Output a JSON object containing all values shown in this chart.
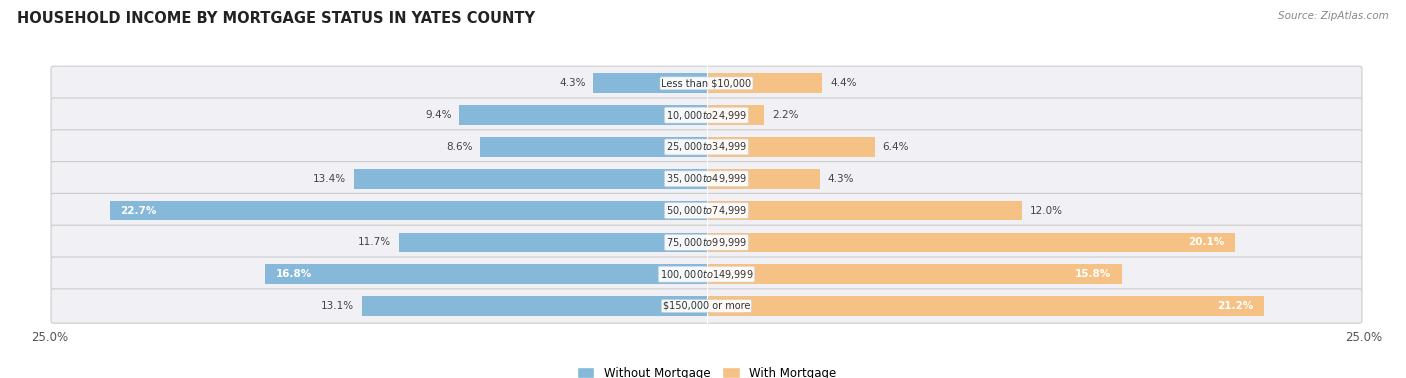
{
  "title": "HOUSEHOLD INCOME BY MORTGAGE STATUS IN YATES COUNTY",
  "source": "Source: ZipAtlas.com",
  "categories": [
    "Less than $10,000",
    "$10,000 to $24,999",
    "$25,000 to $34,999",
    "$35,000 to $49,999",
    "$50,000 to $74,999",
    "$75,000 to $99,999",
    "$100,000 to $149,999",
    "$150,000 or more"
  ],
  "without_mortgage": [
    4.3,
    9.4,
    8.6,
    13.4,
    22.7,
    11.7,
    16.8,
    13.1
  ],
  "with_mortgage": [
    4.4,
    2.2,
    6.4,
    4.3,
    12.0,
    20.1,
    15.8,
    21.2
  ],
  "color_without": "#85b8d9",
  "color_with": "#f5c185",
  "axis_max": 25.0,
  "bar_height": 0.62,
  "row_bg_color": "#e8e8ee",
  "row_bg_inner": "#f5f5f8",
  "legend_labels": [
    "Without Mortgage",
    "With Mortgage"
  ]
}
